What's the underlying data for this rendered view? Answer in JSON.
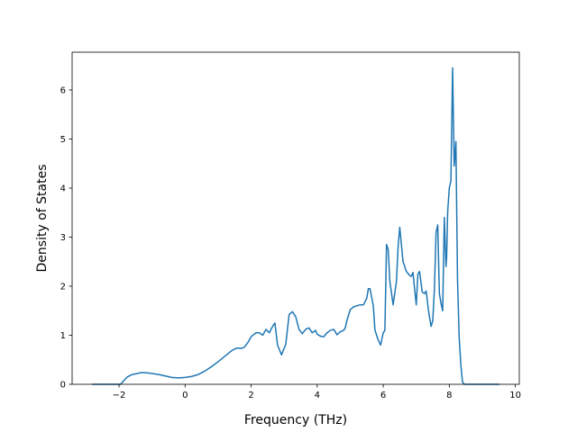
{
  "chart_data": {
    "type": "line",
    "title": "",
    "xlabel": "Frequency (THz)",
    "ylabel": "Density of States",
    "xlim": [
      -3.42,
      10.12
    ],
    "ylim": [
      0,
      6.77
    ],
    "grid": false,
    "legend": "none",
    "x_ticks": [
      -2,
      0,
      2,
      4,
      6,
      8,
      10
    ],
    "x_tick_labels": [
      "−2",
      "0",
      "2",
      "4",
      "6",
      "8",
      "10"
    ],
    "y_ticks": [
      0,
      1,
      2,
      3,
      4,
      5,
      6
    ],
    "y_tick_labels": [
      "0",
      "1",
      "2",
      "3",
      "4",
      "5",
      "6"
    ],
    "series": [
      {
        "name": "",
        "color": "#1f77b4",
        "x": [
          -2.8,
          -1.95,
          -1.85,
          -1.75,
          -1.6,
          -1.45,
          -1.3,
          -1.1,
          -0.8,
          -0.6,
          -0.4,
          -0.2,
          0.0,
          0.2,
          0.4,
          0.6,
          0.8,
          1.0,
          1.2,
          1.4,
          1.5,
          1.6,
          1.7,
          1.8,
          1.9,
          2.0,
          2.05,
          2.15,
          2.25,
          2.35,
          2.45,
          2.55,
          2.65,
          2.72,
          2.8,
          2.92,
          3.05,
          3.15,
          3.25,
          3.35,
          3.45,
          3.55,
          3.65,
          3.75,
          3.85,
          3.95,
          4.0,
          4.1,
          4.2,
          4.3,
          4.4,
          4.5,
          4.6,
          4.7,
          4.8,
          4.85,
          4.9,
          5.0,
          5.1,
          5.2,
          5.3,
          5.4,
          5.5,
          5.55,
          5.6,
          5.7,
          5.75,
          5.85,
          5.92,
          6.0,
          6.05,
          6.1,
          6.15,
          6.2,
          6.3,
          6.4,
          6.45,
          6.5,
          6.6,
          6.7,
          6.8,
          6.85,
          6.9,
          6.95,
          7.0,
          7.05,
          7.1,
          7.18,
          7.25,
          7.3,
          7.38,
          7.45,
          7.5,
          7.55,
          7.6,
          7.65,
          7.7,
          7.75,
          7.8,
          7.85,
          7.9,
          7.92,
          7.95,
          8.0,
          8.05,
          8.1,
          8.15,
          8.2,
          8.25,
          8.3,
          8.35,
          8.4,
          8.45,
          8.5,
          8.6,
          9.5
        ],
        "values": [
          0.0,
          0.0,
          0.08,
          0.15,
          0.2,
          0.22,
          0.24,
          0.23,
          0.2,
          0.17,
          0.14,
          0.13,
          0.14,
          0.16,
          0.2,
          0.27,
          0.36,
          0.46,
          0.57,
          0.68,
          0.72,
          0.74,
          0.73,
          0.76,
          0.85,
          0.97,
          1.0,
          1.05,
          1.05,
          1.0,
          1.12,
          1.05,
          1.18,
          1.25,
          0.8,
          0.6,
          0.82,
          1.42,
          1.48,
          1.38,
          1.12,
          1.03,
          1.12,
          1.15,
          1.05,
          1.1,
          1.02,
          0.98,
          0.97,
          1.05,
          1.1,
          1.12,
          1.01,
          1.07,
          1.1,
          1.15,
          1.3,
          1.52,
          1.58,
          1.6,
          1.62,
          1.62,
          1.75,
          1.95,
          1.95,
          1.6,
          1.1,
          0.9,
          0.8,
          1.05,
          1.1,
          2.85,
          2.75,
          2.1,
          1.62,
          2.1,
          2.8,
          3.2,
          2.5,
          2.3,
          2.22,
          2.2,
          2.28,
          1.95,
          1.62,
          2.25,
          2.3,
          1.88,
          1.85,
          1.9,
          1.45,
          1.18,
          1.3,
          1.95,
          3.1,
          3.25,
          1.85,
          1.65,
          1.5,
          3.4,
          2.4,
          2.6,
          3.5,
          4.0,
          4.15,
          6.45,
          4.45,
          4.95,
          2.1,
          0.95,
          0.4,
          0.05,
          0.0,
          0.0,
          0.0,
          0.0
        ]
      }
    ]
  }
}
